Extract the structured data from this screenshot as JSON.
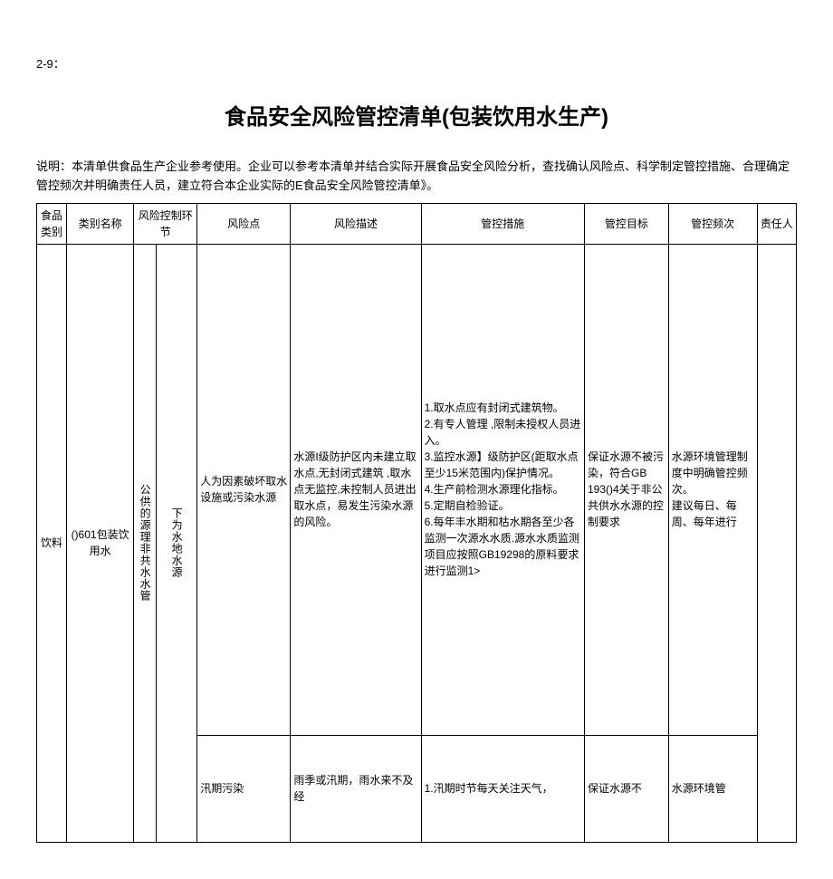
{
  "pageRef": "2-9：",
  "title": "食品安全风险管控清单(包装饮用水生产)",
  "description": "说明：本清单供食品生产企业参考使用。企业可以参考本清单并结合实际开展食品安全风险分析，查找确认风险点、科学制定管控措施、合理确定管控频次并明确责任人员，建立符合本企业实际的E食品安全风险管控清单》。",
  "headers": {
    "foodCategory": "食品类别",
    "typeName": "类别名称",
    "riskControlLink": "风险控制环节",
    "riskPoint": "风险点",
    "riskDesc": "风险描述",
    "controlMeasure": "管控措施",
    "controlTarget": "管控目标",
    "controlFreq": "管控频次",
    "responsible": "责任人"
  },
  "rows": [
    {
      "foodCategory": "饮料",
      "productName": "()601包装饮用水",
      "sourceCat": "公供的源理非共水水管",
      "linkCat": "下为水地水源",
      "riskPoint": "人为因素破坏取水设施或污染水源",
      "riskDesc": "水源I级防护区内未建立取水点,无封闭式建筑 ,取水点无监控,未控制人员进出取水点，易发生污染水源的风险。",
      "controlMeasure": "1.取水点应有封闭式建筑物。\n2.有专人管理 ,限制未授权人员进入。\n3.监控水源】级防护区(距取水点至少15米范围内)保护情况。\n4.生产前检测水源理化指标。\n5.定期自检验证。\n6.每年丰水期和枯水期各至少各监测一次源水水质.源水水质监测项目应按照GB19298的原料要求进行监测1>",
      "controlTarget": "保证水源不被污染，符合GB 193()4关于非公共供水水源的控制要求",
      "controlFreq": "水源环境管理制度中明确管控频次。\n建议每日、每周、每年进行"
    },
    {
      "riskPoint": "汛期污染",
      "riskDesc": "雨季或汛期，雨水来不及经",
      "controlMeasure": "1.汛期时节每天关注天气，",
      "controlTarget": "保证水源不",
      "controlFreq": "水源环境管"
    }
  ]
}
